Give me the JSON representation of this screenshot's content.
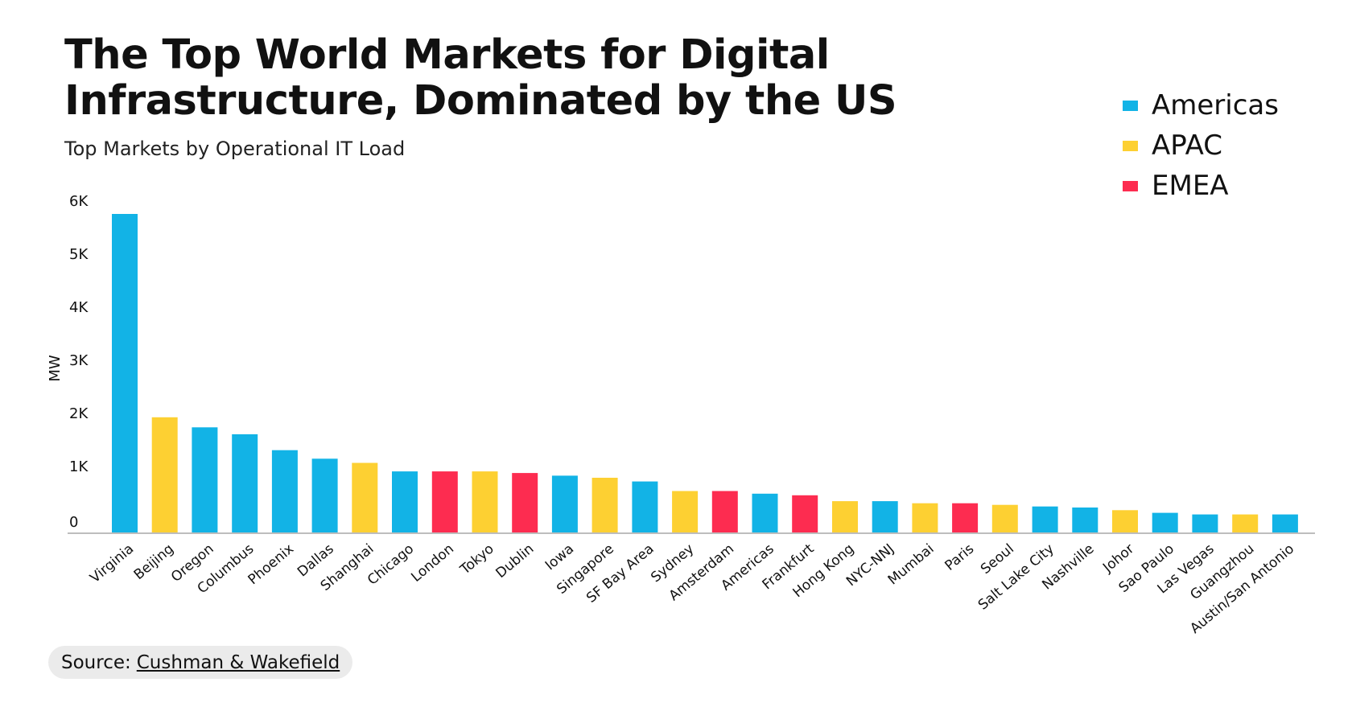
{
  "title": "The Top World Markets for Digital Infrastructure, Dominated by the US",
  "subtitle": "Top Markets by Operational IT Load",
  "source": {
    "prefix": "Source:",
    "link": "Cushman & Wakefield"
  },
  "legend": [
    {
      "label": "Americas",
      "color": "#12B3E6"
    },
    {
      "label": "APAC",
      "color": "#FDD032"
    },
    {
      "label": "EMEA",
      "color": "#FD2C50"
    }
  ],
  "chart_data": {
    "type": "bar",
    "title": "The Top World Markets for Digital Infrastructure, Dominated by the US",
    "subtitle": "Top Markets by Operational IT Load",
    "xlabel": "",
    "ylabel": "MW",
    "ylim": [
      0,
      6000
    ],
    "yticks": [
      {
        "value": 0,
        "label": "0"
      },
      {
        "value": 1000,
        "label": "1K"
      },
      {
        "value": 2000,
        "label": "2K"
      },
      {
        "value": 3000,
        "label": "3K"
      },
      {
        "value": 4000,
        "label": "4K"
      },
      {
        "value": 5000,
        "label": "5K"
      },
      {
        "value": 6000,
        "label": "6K"
      }
    ],
    "categories": [
      "Virginia",
      "Beijing",
      "Oregon",
      "Columbus",
      "Phoenix",
      "Dallas",
      "Shanghai",
      "Chicago",
      "London",
      "Tokyo",
      "Dublin",
      "Iowa",
      "Singapore",
      "SF Bay Area",
      "Sydney",
      "Amsterdam",
      "Americas",
      "Frankfurt",
      "Hong Kong",
      "NYC-NNJ",
      "Mumbai",
      "Paris",
      "Seoul",
      "Salt Lake City",
      "Nashville",
      "Johor",
      "Sao Paulo",
      "Las Vegas",
      "Guangzhou",
      "Austin/San Antonio"
    ],
    "values": [
      6000,
      2170,
      1980,
      1850,
      1550,
      1390,
      1310,
      1150,
      1150,
      1150,
      1120,
      1070,
      1030,
      960,
      780,
      780,
      730,
      700,
      590,
      590,
      550,
      550,
      520,
      490,
      470,
      420,
      370,
      340,
      340,
      340
    ],
    "regions": [
      "Americas",
      "APAC",
      "Americas",
      "Americas",
      "Americas",
      "Americas",
      "APAC",
      "Americas",
      "EMEA",
      "APAC",
      "EMEA",
      "Americas",
      "APAC",
      "Americas",
      "APAC",
      "EMEA",
      "Americas",
      "EMEA",
      "APAC",
      "Americas",
      "APAC",
      "EMEA",
      "APAC",
      "Americas",
      "Americas",
      "APAC",
      "Americas",
      "Americas",
      "APAC",
      "Americas"
    ],
    "legend_position": "top-right",
    "grid": false
  }
}
